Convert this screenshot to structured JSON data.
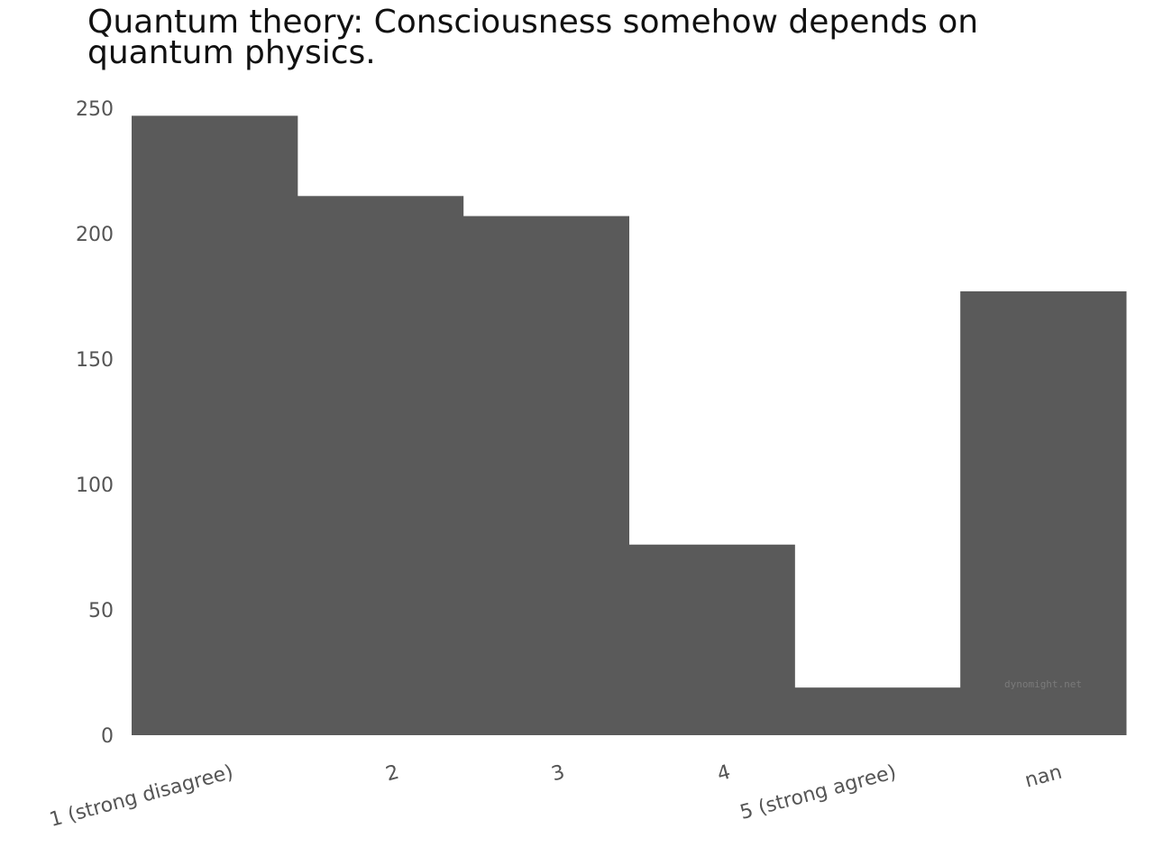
{
  "chart_data": {
    "type": "bar",
    "title": "Quantum theory: Consciousness somehow depends on quantum physics.",
    "xlabel": "",
    "ylabel": "",
    "categories": [
      "1 (strong disagree)",
      "2",
      "3",
      "4",
      "5 (strong agree)",
      "nan"
    ],
    "values": [
      247,
      215,
      207,
      76,
      19,
      177
    ],
    "ylim": [
      0,
      250
    ],
    "yticks": [
      "0",
      "50",
      "100",
      "150",
      "200",
      "250"
    ],
    "grid": false,
    "bar_color": "#5a5a5a",
    "watermark": "dynomight.net"
  }
}
